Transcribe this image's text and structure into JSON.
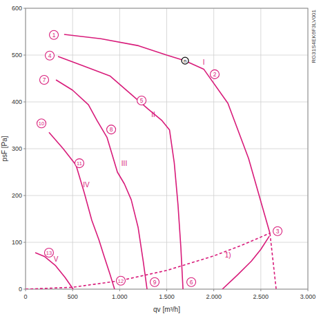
{
  "chart_data": {
    "type": "line",
    "x_label": "qv [m³/h]",
    "y_label": "psF [Pa]",
    "side_text": "RG31S4EK6F3LV001",
    "xlim": [
      0,
      3000
    ],
    "ylim": [
      0,
      600
    ],
    "xticks": [
      0,
      500,
      {
        "value": 1000,
        "label": "1.000"
      },
      {
        "value": 1500,
        "label": "1.500"
      },
      {
        "value": 2000,
        "label": "2.000"
      },
      {
        "value": 2500,
        "label": "2.500"
      },
      {
        "value": 3000,
        "label": "3.000"
      }
    ],
    "yticks": [
      0,
      100,
      200,
      300,
      400,
      500,
      600
    ],
    "grid": true,
    "series": [
      {
        "name": "I",
        "color": "#d81b7a",
        "line_style": "solid",
        "label_x": 1893,
        "label_y": 485,
        "x": [
          410,
          800,
          1200,
          1500,
          1695,
          1893,
          2150,
          2370,
          2516,
          2597
        ],
        "values": [
          544,
          535,
          520,
          500,
          488,
          470,
          397,
          279,
          176,
          119
        ]
      },
      {
        "name": "II",
        "color": "#d81b7a",
        "line_style": "solid",
        "label_x": 1357,
        "label_y": 374,
        "x": [
          345,
          600,
          900,
          1100,
          1300,
          1450,
          1530,
          1580,
          1620,
          1650,
          1673
        ],
        "values": [
          497,
          478,
          455,
          420,
          385,
          360,
          340,
          270,
          180,
          90,
          0
        ]
      },
      {
        "name": "III",
        "color": "#d81b7a",
        "line_style": "solid",
        "label_x": 1049,
        "label_y": 269,
        "x": [
          323,
          500,
          668,
          760,
          866,
          976,
          1050,
          1123,
          1196,
          1250,
          1291
        ],
        "values": [
          447,
          425,
          394,
          360,
          324,
          250,
          225,
          191,
          132,
          60,
          0
        ]
      },
      {
        "name": "IV",
        "color": "#d81b7a",
        "line_style": "solid",
        "label_x": 646,
        "label_y": 224,
        "x": [
          249,
          400,
          536,
          624,
          704,
          780,
          829,
          900,
          946
        ],
        "values": [
          335,
          300,
          265,
          206,
          147,
          105,
          74,
          30,
          0
        ]
      },
      {
        "name": "V",
        "color": "#d81b7a",
        "line_style": "solid",
        "label_x": 323,
        "label_y": 65,
        "x": [
          103,
          200,
          315,
          420,
          506
        ],
        "values": [
          78,
          70,
          51,
          25,
          0
        ]
      },
      {
        "color": "#d81b7a",
        "line_style": "dashed",
        "x": [
          2597,
          2663
        ],
        "values": [
          119,
          0
        ]
      },
      {
        "color": "#d81b7a",
        "line_style": "dashed",
        "x": [
          0,
          500,
          1000,
          1500,
          2000,
          2300,
          2600
        ],
        "values": [
          0,
          4,
          18,
          40,
          71,
          94,
          120
        ]
      },
      {
        "name": "1)",
        "color": "#d81b7a",
        "line_style": "solid",
        "label_x": 2150,
        "label_y": 74,
        "x": [
          2091,
          2250,
          2400,
          2500,
          2590
        ],
        "values": [
          0,
          30,
          60,
          85,
          113
        ]
      }
    ],
    "annotations": [
      {
        "text": "1",
        "x": 301,
        "y": 543
      },
      {
        "text": "2",
        "x": 2010,
        "y": 459
      },
      {
        "text": "3",
        "x": 2678,
        "y": 124
      },
      {
        "text": "4",
        "x": 257,
        "y": 499
      },
      {
        "text": "5",
        "x": 1233,
        "y": 403
      },
      {
        "text": "6",
        "x": 1761,
        "y": 15
      },
      {
        "text": "7",
        "x": 198,
        "y": 447
      },
      {
        "text": "8",
        "x": 910,
        "y": 341
      },
      {
        "text": "9",
        "x": 1372,
        "y": 15
      },
      {
        "text": "10",
        "x": 169,
        "y": 354
      },
      {
        "text": "11",
        "x": 572,
        "y": 269
      },
      {
        "text": "12",
        "x": 1012,
        "y": 18
      },
      {
        "text": "13",
        "x": 249,
        "y": 78
      }
    ],
    "operating_point": {
      "text": "n",
      "x": 1695,
      "y": 488
    }
  }
}
